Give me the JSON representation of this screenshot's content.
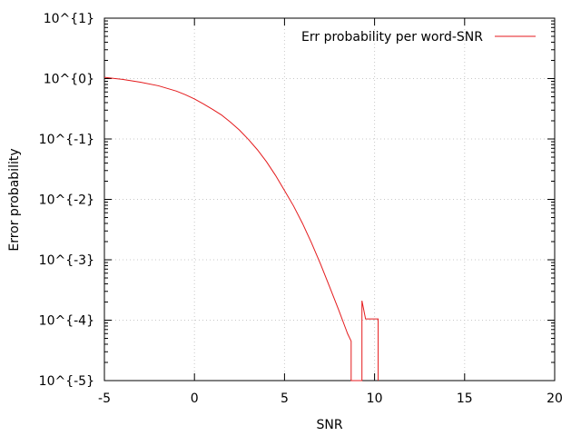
{
  "chart_data": {
    "type": "line",
    "title": "",
    "xlabel": "SNR",
    "ylabel": "Error probability",
    "xlim": [
      -5,
      20
    ],
    "ylim_log10": [
      -5,
      1
    ],
    "y_scale": "log",
    "grid": true,
    "legend_position": "top-right",
    "x_ticks": [
      -5,
      0,
      5,
      10,
      15,
      20
    ],
    "x_tick_labels": [
      "-5",
      "0",
      "5",
      "10",
      "15",
      "20"
    ],
    "y_ticks_log10": [
      1,
      0,
      -1,
      -2,
      -3,
      -4,
      -5
    ],
    "y_tick_labels": [
      "10^{1}",
      "10^{0}",
      "10^{-1}",
      "10^{-2}",
      "10^{-3}",
      "10^{-4}",
      "10^{-5}"
    ],
    "series": [
      {
        "name": "Err probability per word-SNR",
        "color": "#e41a1c",
        "points": [
          [
            -5.0,
            1.05
          ],
          [
            -4.0,
            0.97
          ],
          [
            -3.0,
            0.87
          ],
          [
            -2.0,
            0.76
          ],
          [
            -1.0,
            0.62
          ],
          [
            -0.5,
            0.54
          ],
          [
            0.0,
            0.46
          ],
          [
            0.5,
            0.38
          ],
          [
            1.0,
            0.31
          ],
          [
            1.5,
            0.25
          ],
          [
            2.0,
            0.19
          ],
          [
            2.5,
            0.14
          ],
          [
            3.0,
            0.098
          ],
          [
            3.5,
            0.066
          ],
          [
            4.0,
            0.042
          ],
          [
            4.5,
            0.025
          ],
          [
            5.0,
            0.014
          ],
          [
            5.5,
            0.0078
          ],
          [
            6.0,
            0.004
          ],
          [
            6.5,
            0.0019
          ],
          [
            7.0,
            0.00085
          ],
          [
            7.5,
            0.00036
          ],
          [
            8.0,
            0.00015
          ],
          [
            8.5,
            6e-05
          ],
          [
            8.7,
            4.5e-05
          ],
          [
            8.7,
            1e-05
          ],
          [
            9.3,
            1e-05
          ],
          [
            9.3,
            0.00021
          ],
          [
            9.5,
            0.000105
          ],
          [
            10.2,
            0.000105
          ],
          [
            10.2,
            1e-05
          ]
        ]
      }
    ]
  }
}
